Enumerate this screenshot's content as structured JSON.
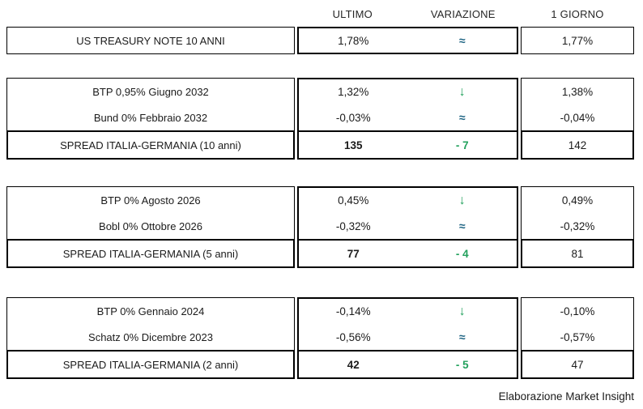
{
  "table": {
    "headers": [
      "ULTIMO",
      "VARIAZIONE",
      "1 GIORNO"
    ]
  },
  "us_treasury": {
    "label": "US TREASURY NOTE 10 ANNI",
    "ultimo": "1,78%",
    "variazione": "≈",
    "giorno": "1,77%"
  },
  "sections": [
    {
      "rows": [
        {
          "label": "BTP 0,95% Giugno 2032",
          "ultimo": "1,32%",
          "variazione": "↓",
          "giorno": "1,38%"
        },
        {
          "label": "Bund 0% Febbraio 2032",
          "ultimo": "-0,03%",
          "variazione": "≈",
          "giorno": "-0,04%"
        }
      ],
      "spread": {
        "label": "SPREAD ITALIA-GERMANIA (10 anni)",
        "ultimo": "135",
        "variazione": "- 7",
        "giorno": "142"
      }
    },
    {
      "rows": [
        {
          "label": "BTP 0% Agosto 2026",
          "ultimo": "0,45%",
          "variazione": "↓",
          "giorno": "0,49%"
        },
        {
          "label": "Bobl 0% Ottobre 2026",
          "ultimo": "-0,32%",
          "variazione": "≈",
          "giorno": "-0,32%"
        }
      ],
      "spread": {
        "label": "SPREAD ITALIA-GERMANIA (5 anni)",
        "ultimo": "77",
        "variazione": "- 4",
        "giorno": "81"
      }
    },
    {
      "rows": [
        {
          "label": "BTP 0% Gennaio 2024",
          "ultimo": "-0,14%",
          "variazione": "↓",
          "giorno": "-0,10%"
        },
        {
          "label": "Schatz 0% Dicembre 2023",
          "ultimo": "-0,56%",
          "variazione": "≈",
          "giorno": "-0,57%"
        }
      ],
      "spread": {
        "label": "SPREAD ITALIA-GERMANIA (2 anni)",
        "ultimo": "42",
        "variazione": "- 5",
        "giorno": "47"
      }
    }
  ],
  "footer": "Elaborazione Market Insight",
  "colors": {
    "arrow_green": "#23A15D",
    "approx_teal": "#1E6483",
    "border_black": "#000000"
  },
  "chart_data": {
    "type": "table",
    "columns": [
      "",
      "ULTIMO",
      "VARIAZIONE",
      "1 GIORNO"
    ],
    "rows": [
      [
        "US TREASURY NOTE 10 ANNI",
        "1,78%",
        "≈",
        "1,77%"
      ],
      [
        "BTP 0,95% Giugno 2032",
        "1,32%",
        "↓",
        "1,38%"
      ],
      [
        "Bund 0% Febbraio 2032",
        "-0,03%",
        "≈",
        "-0,04%"
      ],
      [
        "SPREAD ITALIA-GERMANIA (10 anni)",
        "135",
        "-7",
        "142"
      ],
      [
        "BTP 0% Agosto 2026",
        "0,45%",
        "↓",
        "0,49%"
      ],
      [
        "Bobl 0% Ottobre 2026",
        "-0,32%",
        "≈",
        "-0,32%"
      ],
      [
        "SPREAD ITALIA-GERMANIA (5 anni)",
        "77",
        "-4",
        "81"
      ],
      [
        "BTP 0% Gennaio 2024",
        "-0,14%",
        "↓",
        "-0,10%"
      ],
      [
        "Schatz 0% Dicembre 2023",
        "-0,56%",
        "≈",
        "-0,57%"
      ],
      [
        "SPREAD ITALIA-GERMANIA (2 anni)",
        "42",
        "-5",
        "47"
      ]
    ],
    "footnote": "Elaborazione Market Insight"
  }
}
